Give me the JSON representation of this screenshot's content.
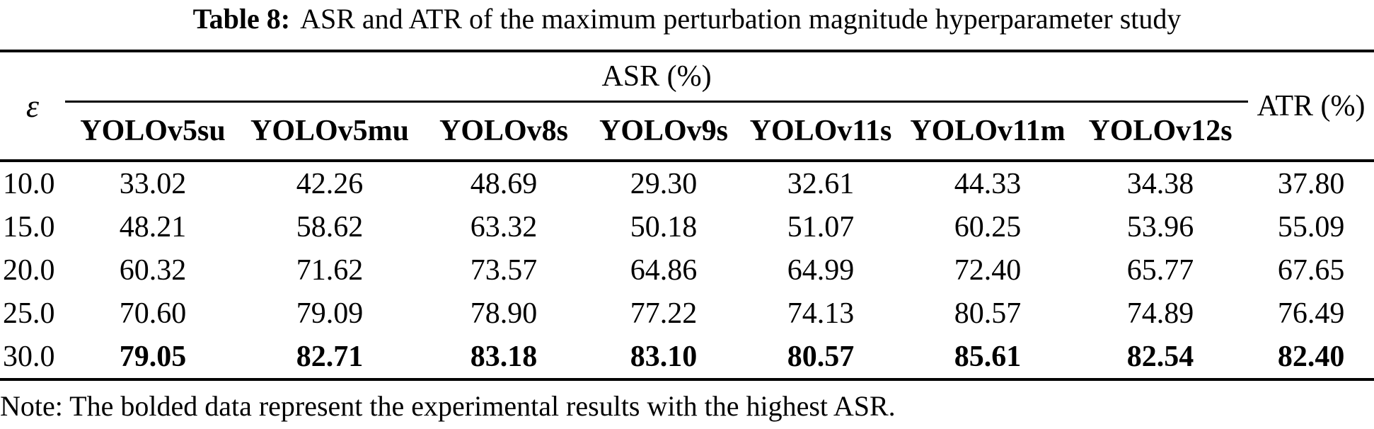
{
  "caption": {
    "label": "Table 8:",
    "text": "ASR and ATR of the maximum perturbation magnitude hyperparameter study"
  },
  "table": {
    "epsilon_symbol": "ε",
    "asr_group_header": "ASR (%)",
    "atr_header": "ATR (%)",
    "model_columns": [
      "YOLOv5su",
      "YOLOv5mu",
      "YOLOv8s",
      "YOLOv9s",
      "YOLOv11s",
      "YOLOv11m",
      "YOLOv12s"
    ],
    "rows": [
      {
        "epsilon": "10.0",
        "asr_values": [
          "33.02",
          "42.26",
          "48.69",
          "29.30",
          "32.61",
          "44.33",
          "34.38"
        ],
        "atr": "37.80",
        "bold": false
      },
      {
        "epsilon": "15.0",
        "asr_values": [
          "48.21",
          "58.62",
          "63.32",
          "50.18",
          "51.07",
          "60.25",
          "53.96"
        ],
        "atr": "55.09",
        "bold": false
      },
      {
        "epsilon": "20.0",
        "asr_values": [
          "60.32",
          "71.62",
          "73.57",
          "64.86",
          "64.99",
          "72.40",
          "65.77"
        ],
        "atr": "67.65",
        "bold": false
      },
      {
        "epsilon": "25.0",
        "asr_values": [
          "70.60",
          "79.09",
          "78.90",
          "77.22",
          "74.13",
          "80.57",
          "74.89"
        ],
        "atr": "76.49",
        "bold": false
      },
      {
        "epsilon": "30.0",
        "asr_values": [
          "79.05",
          "82.71",
          "83.18",
          "83.10",
          "80.57",
          "85.61",
          "82.54"
        ],
        "atr": "82.40",
        "bold": true
      }
    ]
  },
  "note": "Note: The bolded data represent the experimental results with the highest ASR."
}
